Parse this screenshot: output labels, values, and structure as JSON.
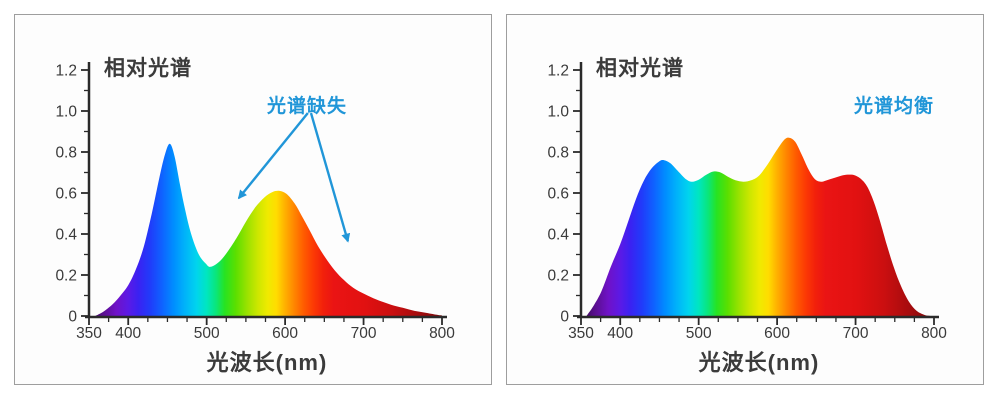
{
  "colors": {
    "axis": "#2a2a2a",
    "tick_label": "#3a3a3a",
    "title_text": "#3b3b3b",
    "annotation_blue": "#2196d8",
    "card_border": "#9e9e9e",
    "card_background": "#fdfdfd"
  },
  "spectrum_gradient": [
    [
      350,
      "#35074e"
    ],
    [
      368,
      "#5a0f8e"
    ],
    [
      385,
      "#6f12c8"
    ],
    [
      400,
      "#5b1ae6"
    ],
    [
      413,
      "#3a22f2"
    ],
    [
      428,
      "#203cfa"
    ],
    [
      443,
      "#0f62ff"
    ],
    [
      458,
      "#008eff"
    ],
    [
      472,
      "#00b2fa"
    ],
    [
      487,
      "#00d4ee"
    ],
    [
      500,
      "#00e6c0"
    ],
    [
      512,
      "#0ae67a"
    ],
    [
      523,
      "#27e322"
    ],
    [
      537,
      "#5bdf00"
    ],
    [
      552,
      "#9ce200"
    ],
    [
      566,
      "#cfe700"
    ],
    [
      578,
      "#f0ea00"
    ],
    [
      589,
      "#ffdc00"
    ],
    [
      600,
      "#ffb000"
    ],
    [
      611,
      "#ff8800"
    ],
    [
      623,
      "#ff5e00"
    ],
    [
      636,
      "#fc3a04"
    ],
    [
      649,
      "#f2200b"
    ],
    [
      662,
      "#ea1414"
    ],
    [
      700,
      "#e21111"
    ],
    [
      736,
      "#cb0f10"
    ],
    [
      768,
      "#a70c0e"
    ],
    [
      800,
      "#7e080b"
    ]
  ],
  "chart_data": [
    {
      "type": "area",
      "title": "相对光谱",
      "xlabel": "光波长(nm)",
      "ylabel": "",
      "xlim": [
        350,
        800
      ],
      "ylim": [
        0,
        1.2
      ],
      "grid": false,
      "x_major_ticks": [
        {
          "v": 350,
          "label": "350"
        },
        {
          "v": 400,
          "label": "400"
        },
        {
          "v": 500,
          "label": "500"
        },
        {
          "v": 600,
          "label": "600"
        },
        {
          "v": 700,
          "label": "700"
        },
        {
          "v": 800,
          "label": "800"
        }
      ],
      "x_minor_ticks": [
        375,
        425,
        450,
        475,
        525,
        550,
        575,
        625,
        650,
        675,
        725,
        750,
        775
      ],
      "y_major_ticks": [
        {
          "v": 0,
          "label": "0"
        },
        {
          "v": 0.2,
          "label": "0.2"
        },
        {
          "v": 0.4,
          "label": "0.4"
        },
        {
          "v": 0.6,
          "label": "0.6"
        },
        {
          "v": 0.8,
          "label": "0.8"
        },
        {
          "v": 1.0,
          "label": "1.0"
        },
        {
          "v": 1.2,
          "label": "1.2"
        }
      ],
      "y_minor_ticks": [
        0.1,
        0.3,
        0.5,
        0.7,
        0.9,
        1.1
      ],
      "annotation": {
        "text": "光谱缺失",
        "color": "#2196d8",
        "anchor_data_coords": [
          628,
          1.06
        ],
        "arrows": [
          {
            "from": [
              629,
              0.99
            ],
            "to": [
              541,
              0.575
            ]
          },
          {
            "from": [
              633,
              0.99
            ],
            "to": [
              680,
              0.365
            ]
          }
        ]
      },
      "points": [
        [
          358,
          0
        ],
        [
          368,
          0.02
        ],
        [
          378,
          0.05
        ],
        [
          388,
          0.09
        ],
        [
          400,
          0.15
        ],
        [
          410,
          0.23
        ],
        [
          420,
          0.34
        ],
        [
          430,
          0.5
        ],
        [
          440,
          0.68
        ],
        [
          447,
          0.79
        ],
        [
          453,
          0.84
        ],
        [
          459,
          0.78
        ],
        [
          466,
          0.64
        ],
        [
          473,
          0.51
        ],
        [
          481,
          0.39
        ],
        [
          490,
          0.3
        ],
        [
          499,
          0.255
        ],
        [
          505,
          0.24
        ],
        [
          516,
          0.265
        ],
        [
          526,
          0.31
        ],
        [
          538,
          0.38
        ],
        [
          550,
          0.46
        ],
        [
          562,
          0.53
        ],
        [
          574,
          0.58
        ],
        [
          584,
          0.605
        ],
        [
          593,
          0.61
        ],
        [
          602,
          0.595
        ],
        [
          612,
          0.55
        ],
        [
          621,
          0.49
        ],
        [
          631,
          0.42
        ],
        [
          642,
          0.34
        ],
        [
          654,
          0.27
        ],
        [
          666,
          0.21
        ],
        [
          678,
          0.165
        ],
        [
          690,
          0.13
        ],
        [
          705,
          0.1
        ],
        [
          720,
          0.075
        ],
        [
          735,
          0.055
        ],
        [
          750,
          0.04
        ],
        [
          765,
          0.025
        ],
        [
          780,
          0.015
        ],
        [
          795,
          0.005
        ],
        [
          800,
          0.003
        ]
      ]
    },
    {
      "type": "area",
      "title": "相对光谱",
      "xlabel": "光波长(nm)",
      "ylabel": "",
      "xlim": [
        350,
        800
      ],
      "ylim": [
        0,
        1.2
      ],
      "grid": false,
      "x_major_ticks": [
        {
          "v": 350,
          "label": "350"
        },
        {
          "v": 400,
          "label": "400"
        },
        {
          "v": 500,
          "label": "500"
        },
        {
          "v": 600,
          "label": "600"
        },
        {
          "v": 700,
          "label": "700"
        },
        {
          "v": 800,
          "label": "800"
        }
      ],
      "x_minor_ticks": [
        375,
        425,
        450,
        475,
        525,
        550,
        575,
        625,
        650,
        675,
        725,
        750,
        775
      ],
      "y_major_ticks": [
        {
          "v": 0,
          "label": "0"
        },
        {
          "v": 0.2,
          "label": "0.2"
        },
        {
          "v": 0.4,
          "label": "0.4"
        },
        {
          "v": 0.6,
          "label": "0.6"
        },
        {
          "v": 0.8,
          "label": "0.8"
        },
        {
          "v": 1.0,
          "label": "1.0"
        },
        {
          "v": 1.2,
          "label": "1.2"
        }
      ],
      "y_minor_ticks": [
        0.1,
        0.3,
        0.5,
        0.7,
        0.9,
        1.1
      ],
      "annotation": {
        "text": "光谱均衡",
        "color": "#2196d8",
        "anchor_data_coords": [
          749,
          1.06
        ],
        "arrows": []
      },
      "points": [
        [
          357,
          0
        ],
        [
          366,
          0.05
        ],
        [
          376,
          0.12
        ],
        [
          388,
          0.24
        ],
        [
          400,
          0.35
        ],
        [
          410,
          0.46
        ],
        [
          420,
          0.57
        ],
        [
          430,
          0.66
        ],
        [
          440,
          0.72
        ],
        [
          450,
          0.755
        ],
        [
          456,
          0.76
        ],
        [
          464,
          0.745
        ],
        [
          474,
          0.705
        ],
        [
          483,
          0.67
        ],
        [
          491,
          0.655
        ],
        [
          500,
          0.665
        ],
        [
          510,
          0.69
        ],
        [
          519,
          0.705
        ],
        [
          528,
          0.7
        ],
        [
          537,
          0.68
        ],
        [
          547,
          0.662
        ],
        [
          557,
          0.655
        ],
        [
          567,
          0.662
        ],
        [
          577,
          0.685
        ],
        [
          588,
          0.74
        ],
        [
          598,
          0.8
        ],
        [
          608,
          0.855
        ],
        [
          615,
          0.87
        ],
        [
          623,
          0.85
        ],
        [
          631,
          0.79
        ],
        [
          640,
          0.715
        ],
        [
          648,
          0.668
        ],
        [
          656,
          0.655
        ],
        [
          664,
          0.663
        ],
        [
          674,
          0.675
        ],
        [
          684,
          0.687
        ],
        [
          693,
          0.69
        ],
        [
          700,
          0.685
        ],
        [
          708,
          0.665
        ],
        [
          715,
          0.63
        ],
        [
          723,
          0.56
        ],
        [
          731,
          0.465
        ],
        [
          740,
          0.345
        ],
        [
          749,
          0.235
        ],
        [
          758,
          0.145
        ],
        [
          768,
          0.07
        ],
        [
          778,
          0.025
        ],
        [
          788,
          0.005
        ],
        [
          795,
          0
        ]
      ]
    }
  ]
}
